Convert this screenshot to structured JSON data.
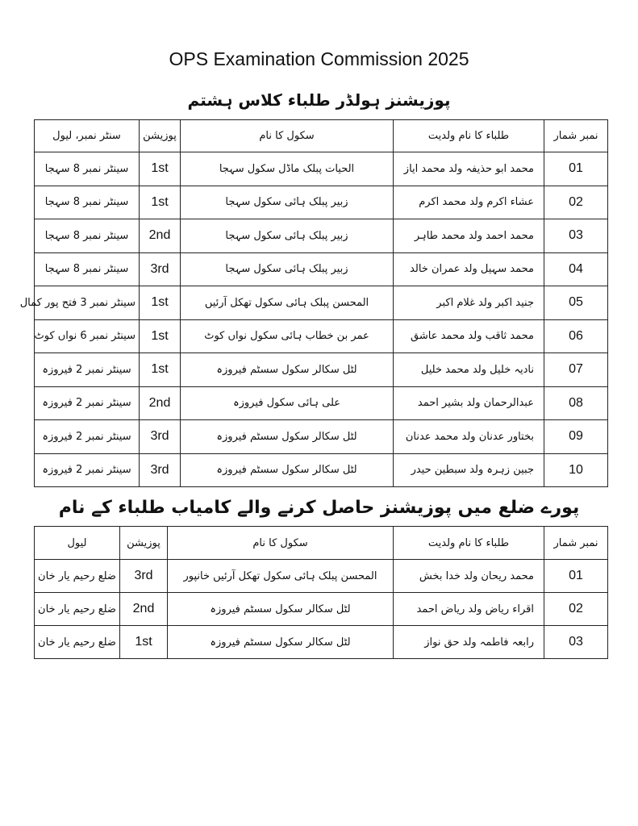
{
  "title": "OPS Examination Commission 2025",
  "section1": {
    "heading": "پوزیشنز ہولڈر طلباء کلاس ہشتم",
    "headers": [
      "نمبر شمار",
      "طلباء کا نام ولدیت",
      "سکول کا نام",
      "پوزیشن",
      "سنٹر نمبر، لیول"
    ],
    "rows": [
      {
        "no": "01",
        "name": "محمد ابو حذیفہ ولد محمد ایاز",
        "school": "الحیات پبلک ماڈل سکول سہجا",
        "position": "1st",
        "center": "سینٹر نمبر 8 سہجا"
      },
      {
        "no": "02",
        "name": "عشاء اکرم ولد محمد اکرم",
        "school": "زبیر پبلک ہائی سکول سہجا",
        "position": "1st",
        "center": "سینٹر نمبر 8 سہجا"
      },
      {
        "no": "03",
        "name": "محمد احمد ولد محمد طاہر",
        "school": "زبیر پبلک ہائی سکول سہجا",
        "position": "2nd",
        "center": "سینٹر نمبر 8 سہجا"
      },
      {
        "no": "04",
        "name": "محمد سہیل ولد عمران خالد",
        "school": "زبیر پبلک ہائی سکول سہجا",
        "position": "3rd",
        "center": "سینٹر نمبر 8 سہجا"
      },
      {
        "no": "05",
        "name": "جنید اکبر ولد غلام اکبر",
        "school": "المحسن پبلک ہائی سکول تھکل آرئیں",
        "position": "1st",
        "center": "سینٹر نمبر 3 فتح پور کمال"
      },
      {
        "no": "06",
        "name": "محمد ثاقب ولد محمد عاشق",
        "school": "عمر بن خطاب ہائی سکول نواں کوٹ",
        "position": "1st",
        "center": "سینٹر نمبر 6 نواں کوٹ"
      },
      {
        "no": "07",
        "name": "نادیہ خلیل ولد محمد خلیل",
        "school": "لٹل سکالر سکول سسٹم فیروزہ",
        "position": "1st",
        "center": "سینٹر نمبر 2 فیروزہ"
      },
      {
        "no": "08",
        "name": "عبدالرحمان ولد بشیر احمد",
        "school": "علی ہائی سکول فیروزہ",
        "position": "2nd",
        "center": "سینٹر نمبر 2 فیروزہ"
      },
      {
        "no": "09",
        "name": "بختاور عدنان ولد محمد عدنان",
        "school": "لٹل سکالر سکول سسٹم فیروزہ",
        "position": "3rd",
        "center": "سینٹر نمبر 2 فیروزہ"
      },
      {
        "no": "10",
        "name": "جبین زہرہ ولد سبطین حیدر",
        "school": "لٹل سکالر سکول سسٹم فیروزہ",
        "position": "3rd",
        "center": "سینٹر نمبر 2 فیروزہ"
      }
    ]
  },
  "section2": {
    "heading": "پورے ضلع میں پوزیشنز حاصل کرنے والے کامیاب طلباء کے نام",
    "headers": [
      "نمبر شمار",
      "طلباء کا نام ولدیت",
      "سکول کا نام",
      "پوزیشن",
      "لیول"
    ],
    "rows": [
      {
        "no": "01",
        "name": "محمد ریحان ولد خدا بخش",
        "school": "المحسن پبلک ہائی سکول تھکل آرئیں خانپور",
        "position": "3rd",
        "level": "ضلع رحیم یار خان"
      },
      {
        "no": "02",
        "name": "اقراء ریاض ولد ریاض احمد",
        "school": "لٹل سکالر سکول سسٹم فیروزہ",
        "position": "2nd",
        "level": "ضلع رحیم یار خان"
      },
      {
        "no": "03",
        "name": "رابعہ فاطمہ ولد حق نواز",
        "school": "لٹل سکالر سکول سسٹم فیروزہ",
        "position": "1st",
        "level": "ضلع رحیم یار خان"
      }
    ]
  }
}
